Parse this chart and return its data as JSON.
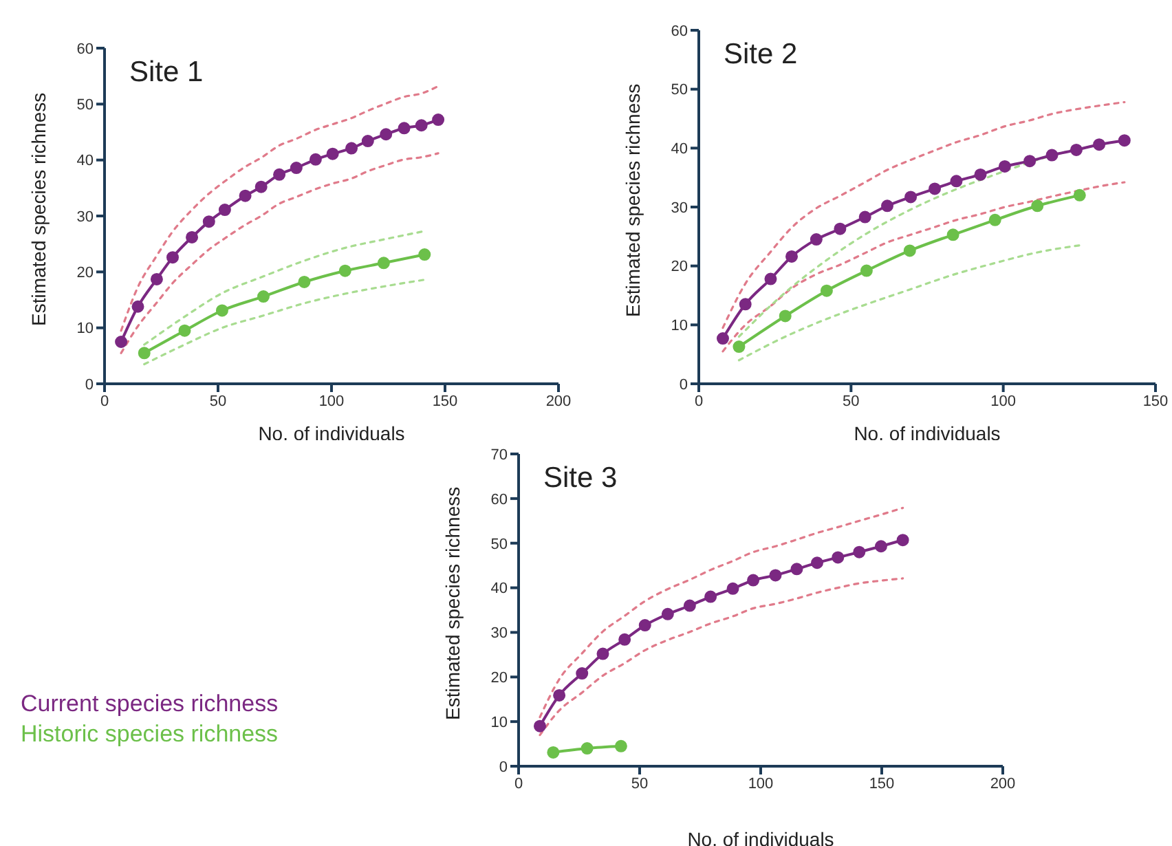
{
  "chart_data": [
    {
      "type": "line",
      "title": "Site 1",
      "xlabel": "No. of individuals",
      "ylabel": "Estimated species richness",
      "xlim": [
        0,
        200
      ],
      "xticks": [
        0,
        50,
        100,
        150,
        200
      ],
      "ylim": [
        0,
        60
      ],
      "yticks": [
        0,
        10,
        20,
        30,
        40,
        50,
        60
      ],
      "marker": "circle",
      "line_style": "solid",
      "series": [
        {
          "color": "#e07a8a",
          "marker": "none",
          "line_style": "dashed",
          "x": [
            7.3,
            14.7,
            23,
            30,
            38.5,
            46,
            53,
            62,
            69,
            77,
            84.5,
            93,
            100.5,
            108.8,
            116,
            124,
            132,
            139.6,
            147
          ],
          "values": [
            9.5,
            17.3,
            22.9,
            27.2,
            31.1,
            34,
            36.2,
            38.8,
            40.4,
            42.6,
            43.8,
            45.4,
            46.4,
            47.5,
            48.8,
            50.1,
            51.3,
            51.9,
            53.2
          ]
        },
        {
          "color": "#e07a8a",
          "marker": "none",
          "line_style": "dashed",
          "x": [
            7.3,
            14.7,
            23,
            30,
            38.5,
            46,
            53,
            62,
            69,
            77,
            84.5,
            93,
            100.5,
            108.8,
            116,
            124,
            132,
            139.6,
            147
          ],
          "values": [
            5.5,
            10.3,
            14.5,
            18,
            21.3,
            24,
            26,
            28.4,
            30,
            32.2,
            33.4,
            34.8,
            35.8,
            36.7,
            38,
            39.1,
            40.1,
            40.5,
            41.2
          ]
        },
        {
          "color": "#a8dc90",
          "marker": "none",
          "line_style": "dashed",
          "x": [
            17.5,
            35.3,
            51.8,
            70,
            88,
            106,
            123,
            141
          ],
          "values": [
            7,
            12,
            16.2,
            19.2,
            22,
            24.3,
            25.8,
            27.3
          ]
        },
        {
          "color": "#a8dc90",
          "marker": "none",
          "line_style": "dashed",
          "x": [
            17.5,
            35.3,
            51.8,
            70,
            88,
            106,
            123,
            141
          ],
          "values": [
            3.5,
            7,
            10,
            12.2,
            14.4,
            16.1,
            17.4,
            18.6
          ]
        },
        {
          "color": "#7b2882",
          "x": [
            7.3,
            14.7,
            23,
            30,
            38.5,
            46,
            53,
            62,
            69,
            77,
            84.5,
            93,
            100.5,
            108.8,
            116,
            124,
            132,
            139.6,
            147
          ],
          "values": [
            7.5,
            13.8,
            18.7,
            22.6,
            26.2,
            29,
            31.1,
            33.6,
            35.2,
            37.4,
            38.6,
            40.1,
            41.1,
            42.1,
            43.4,
            44.6,
            45.7,
            46.2,
            47.2
          ]
        },
        {
          "color": "#6cc04a",
          "x": [
            17.5,
            35.3,
            51.8,
            70,
            88,
            106,
            123,
            141
          ],
          "values": [
            5.5,
            9.5,
            13.1,
            15.6,
            18.2,
            20.2,
            21.6,
            23.1
          ]
        }
      ]
    },
    {
      "type": "line",
      "title": "Site 2",
      "xlabel": "No. of individuals",
      "ylabel": "Estimated species richness",
      "xlim": [
        0,
        150
      ],
      "xticks": [
        0,
        50,
        100,
        150
      ],
      "ylim": [
        0,
        60
      ],
      "yticks": [
        0,
        10,
        20,
        30,
        40,
        50,
        60
      ],
      "marker": "circle",
      "line_style": "solid",
      "series": [
        {
          "color": "#e07a8a",
          "marker": "none",
          "line_style": "dashed",
          "x": [
            7.9,
            15.3,
            23.6,
            30.5,
            38.6,
            46.4,
            54.6,
            61.9,
            69.6,
            77.5,
            84.6,
            92.5,
            100.5,
            108.7,
            116,
            124,
            131.5,
            139.8
          ],
          "values": [
            9.5,
            17,
            22.4,
            26.5,
            29.8,
            31.9,
            34.2,
            36.3,
            38,
            39.6,
            41,
            42.2,
            43.7,
            44.7,
            45.8,
            46.6,
            47.2,
            47.8
          ]
        },
        {
          "color": "#e07a8a",
          "marker": "none",
          "line_style": "dashed",
          "x": [
            7.9,
            15.3,
            23.6,
            30.5,
            38.6,
            46.4,
            54.6,
            61.9,
            69.6,
            77.5,
            84.6,
            92.5,
            100.5,
            108.7,
            116,
            124,
            131.5,
            139.8
          ],
          "values": [
            5.5,
            10,
            13.2,
            16.2,
            18.6,
            20.2,
            22.2,
            24,
            25.3,
            26.6,
            27.8,
            28.8,
            30,
            30.9,
            31.8,
            32.7,
            33.5,
            34.2
          ]
        },
        {
          "color": "#a8dc90",
          "marker": "none",
          "line_style": "dashed",
          "x": [
            13.2,
            28.4,
            42,
            55.1,
            69.3,
            83.5,
            97.3,
            111.2,
            125.1
          ],
          "values": [
            8,
            15.5,
            21,
            25.5,
            29.5,
            32.8,
            35.5,
            38,
            40
          ]
        },
        {
          "color": "#a8dc90",
          "marker": "none",
          "line_style": "dashed",
          "x": [
            13.2,
            28.4,
            42,
            55.1,
            69.3,
            83.5,
            97.3,
            111.2,
            125.1
          ],
          "values": [
            4,
            8,
            11,
            13.5,
            16,
            18.5,
            20.5,
            22.3,
            23.5
          ]
        },
        {
          "color": "#7b2882",
          "x": [
            7.9,
            15.3,
            23.6,
            30.5,
            38.6,
            46.4,
            54.6,
            61.9,
            69.6,
            77.5,
            84.6,
            92.5,
            100.5,
            108.7,
            116,
            124,
            131.5,
            139.8
          ],
          "values": [
            7.7,
            13.5,
            17.8,
            21.6,
            24.5,
            26.3,
            28.3,
            30.2,
            31.7,
            33.1,
            34.4,
            35.5,
            36.9,
            37.8,
            38.8,
            39.7,
            40.6,
            41.3
          ]
        },
        {
          "color": "#6cc04a",
          "x": [
            13.2,
            28.4,
            42,
            55.1,
            69.3,
            83.5,
            97.3,
            111.2,
            125.1
          ],
          "values": [
            6.3,
            11.5,
            15.8,
            19.2,
            22.6,
            25.3,
            27.8,
            30.2,
            32
          ]
        }
      ]
    },
    {
      "type": "line",
      "title": "Site 3",
      "xlabel": "No. of individuals",
      "ylabel": "Estimated species richness",
      "xlim": [
        0,
        200
      ],
      "xticks": [
        0,
        50,
        100,
        150,
        200
      ],
      "ylim": [
        0,
        70
      ],
      "yticks": [
        0,
        10,
        20,
        30,
        40,
        50,
        60,
        70
      ],
      "marker": "circle",
      "line_style": "solid",
      "legend": "left",
      "series": [
        {
          "color": "#e07a8a",
          "marker": "none",
          "line_style": "dashed",
          "x": [
            8.8,
            16.8,
            26.2,
            34.8,
            43.8,
            52.2,
            61.6,
            70.7,
            79.3,
            88.5,
            96.9,
            106.1,
            114.9,
            123.3,
            131.9,
            140.7,
            149.7,
            158.7
          ],
          "values": [
            11,
            19.5,
            25.3,
            30.2,
            33.7,
            37,
            39.7,
            41.8,
            44,
            46,
            48,
            49.3,
            50.8,
            52.3,
            53.6,
            55,
            56.4,
            57.9
          ]
        },
        {
          "color": "#e07a8a",
          "marker": "none",
          "line_style": "dashed",
          "x": [
            8.8,
            16.8,
            26.2,
            34.8,
            43.8,
            52.2,
            61.6,
            70.7,
            79.3,
            88.5,
            96.9,
            106.1,
            114.9,
            123.3,
            131.9,
            140.7,
            149.7,
            158.7
          ],
          "values": [
            7,
            12.5,
            16.5,
            20.3,
            23.1,
            26,
            28.3,
            30.1,
            32,
            33.6,
            35.4,
            36.4,
            37.6,
            38.9,
            40,
            41,
            41.6,
            42.1
          ]
        },
        {
          "name": "Current species richness",
          "color": "#7b2882",
          "x": [
            8.8,
            16.8,
            26.2,
            34.8,
            43.8,
            52.2,
            61.6,
            70.7,
            79.3,
            88.5,
            96.9,
            106.1,
            114.9,
            123.3,
            131.9,
            140.7,
            149.7,
            158.7
          ],
          "values": [
            9,
            15.9,
            20.8,
            25.2,
            28.4,
            31.6,
            34.1,
            36,
            38,
            39.8,
            41.7,
            42.8,
            44.2,
            45.6,
            46.8,
            48,
            49.3,
            50.7
          ]
        },
        {
          "name": "Historic species richness",
          "color": "#6cc04a",
          "x": [
            14.3,
            28.3,
            42.3
          ],
          "values": [
            3.1,
            4,
            4.5
          ]
        }
      ]
    }
  ]
}
